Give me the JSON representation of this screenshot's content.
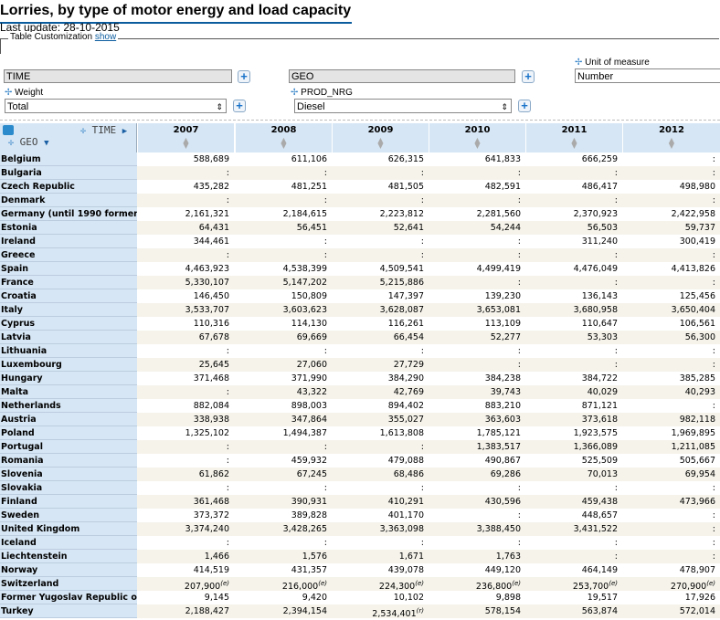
{
  "page": {
    "title": "Lorries, by type of motor energy and load capacity",
    "last_update": "Last update: 28-10-2015"
  },
  "customization": {
    "label": "Table Customization",
    "link": "show"
  },
  "dimensions": {
    "time": {
      "value": "TIME"
    },
    "geo": {
      "value": "GEO"
    },
    "unit": {
      "label": "Unit of measure",
      "value": "Number"
    },
    "weight": {
      "label": "Weight",
      "value": "Total"
    },
    "prod": {
      "label": "PROD_NRG",
      "value": "Diesel"
    }
  },
  "table": {
    "time_label": "TIME",
    "geo_label": "GEO",
    "columns": [
      "2007",
      "2008",
      "2009",
      "2010",
      "2011",
      "2012"
    ],
    "rows": [
      {
        "name": "Belgium",
        "values": [
          "588,689",
          "611,106",
          "626,315",
          "641,833",
          "666,259",
          ":"
        ]
      },
      {
        "name": "Bulgaria",
        "values": [
          ":",
          ":",
          ":",
          ":",
          ":",
          ":"
        ]
      },
      {
        "name": "Czech Republic",
        "values": [
          "435,282",
          "481,251",
          "481,505",
          "482,591",
          "486,417",
          "498,980"
        ]
      },
      {
        "name": "Denmark",
        "values": [
          ":",
          ":",
          ":",
          ":",
          ":",
          ":"
        ]
      },
      {
        "name": "Germany (until 1990 former territory of the FRG)",
        "values": [
          "2,161,321",
          "2,184,615",
          "2,223,812",
          "2,281,560",
          "2,370,923",
          "2,422,958"
        ]
      },
      {
        "name": "Estonia",
        "values": [
          "64,431",
          "56,451",
          "52,641",
          "54,244",
          "56,503",
          "59,737"
        ]
      },
      {
        "name": "Ireland",
        "values": [
          "344,461",
          ":",
          ":",
          ":",
          "311,240",
          "300,419"
        ]
      },
      {
        "name": "Greece",
        "values": [
          ":",
          ":",
          ":",
          ":",
          ":",
          ":"
        ]
      },
      {
        "name": "Spain",
        "values": [
          "4,463,923",
          "4,538,399",
          "4,509,541",
          "4,499,419",
          "4,476,049",
          "4,413,826"
        ]
      },
      {
        "name": "France",
        "values": [
          "5,330,107",
          "5,147,202",
          "5,215,886",
          ":",
          ":",
          ":"
        ]
      },
      {
        "name": "Croatia",
        "values": [
          "146,450",
          "150,809",
          "147,397",
          "139,230",
          "136,143",
          "125,456"
        ]
      },
      {
        "name": "Italy",
        "values": [
          "3,533,707",
          "3,603,623",
          "3,628,087",
          "3,653,081",
          "3,680,958",
          "3,650,404"
        ]
      },
      {
        "name": "Cyprus",
        "values": [
          "110,316",
          "114,130",
          "116,261",
          "113,109",
          "110,647",
          "106,561"
        ]
      },
      {
        "name": "Latvia",
        "values": [
          "67,678",
          "69,669",
          "66,454",
          "52,277",
          "53,303",
          "56,300"
        ]
      },
      {
        "name": "Lithuania",
        "values": [
          ":",
          ":",
          ":",
          ":",
          ":",
          ":"
        ]
      },
      {
        "name": "Luxembourg",
        "values": [
          "25,645",
          "27,060",
          "27,729",
          ":",
          ":",
          ":"
        ]
      },
      {
        "name": "Hungary",
        "values": [
          "371,468",
          "371,990",
          "384,290",
          "384,238",
          "384,722",
          "385,285"
        ]
      },
      {
        "name": "Malta",
        "values": [
          ":",
          "43,322",
          "42,769",
          "39,743",
          "40,029",
          "40,293"
        ]
      },
      {
        "name": "Netherlands",
        "values": [
          "882,084",
          "898,003",
          "894,402",
          "883,210",
          "871,121",
          ":"
        ]
      },
      {
        "name": "Austria",
        "values": [
          "338,938",
          "347,864",
          "355,027",
          "363,603",
          "373,618",
          "982,118"
        ]
      },
      {
        "name": "Poland",
        "values": [
          "1,325,102",
          "1,494,387",
          "1,613,808",
          "1,785,121",
          "1,923,575",
          "1,969,895"
        ]
      },
      {
        "name": "Portugal",
        "values": [
          ":",
          ":",
          ":",
          "1,383,517",
          "1,366,089",
          "1,211,085"
        ]
      },
      {
        "name": "Romania",
        "values": [
          ":",
          "459,932",
          "479,088",
          "490,867",
          "525,509",
          "505,667"
        ]
      },
      {
        "name": "Slovenia",
        "values": [
          "61,862",
          "67,245",
          "68,486",
          "69,286",
          "70,013",
          "69,954"
        ]
      },
      {
        "name": "Slovakia",
        "values": [
          ":",
          ":",
          ":",
          ":",
          ":",
          ":"
        ]
      },
      {
        "name": "Finland",
        "values": [
          "361,468",
          "390,931",
          "410,291",
          "430,596",
          "459,438",
          "473,966"
        ]
      },
      {
        "name": "Sweden",
        "values": [
          "373,372",
          "389,828",
          "401,170",
          ":",
          "448,657",
          ":"
        ]
      },
      {
        "name": "United Kingdom",
        "values": [
          "3,374,240",
          "3,428,265",
          "3,363,098",
          "3,388,450",
          "3,431,522",
          ":"
        ]
      },
      {
        "name": "Iceland",
        "values": [
          ":",
          ":",
          ":",
          ":",
          ":",
          ":"
        ]
      },
      {
        "name": "Liechtenstein",
        "values": [
          "1,466",
          "1,576",
          "1,671",
          "1,763",
          ":",
          ":"
        ]
      },
      {
        "name": "Norway",
        "values": [
          "414,519",
          "431,357",
          "439,078",
          "449,120",
          "464,149",
          "478,907"
        ]
      },
      {
        "name": "Switzerland",
        "values": [
          "207,900",
          "216,000",
          "224,300",
          "236,800",
          "253,700",
          "270,900"
        ],
        "flags": [
          "(e)",
          "(e)",
          "(e)",
          "(e)",
          "(e)",
          "(e)"
        ]
      },
      {
        "name": "Former Yugoslav Republic of Macedonia, the",
        "values": [
          "9,145",
          "9,420",
          "10,102",
          "9,898",
          "19,517",
          "17,926"
        ]
      },
      {
        "name": "Turkey",
        "values": [
          "2,188,427",
          "2,394,154",
          "2,534,401",
          "578,154",
          "563,874",
          "572,014"
        ],
        "flags": [
          "",
          "",
          "(r)",
          "",
          "",
          ""
        ]
      }
    ]
  }
}
